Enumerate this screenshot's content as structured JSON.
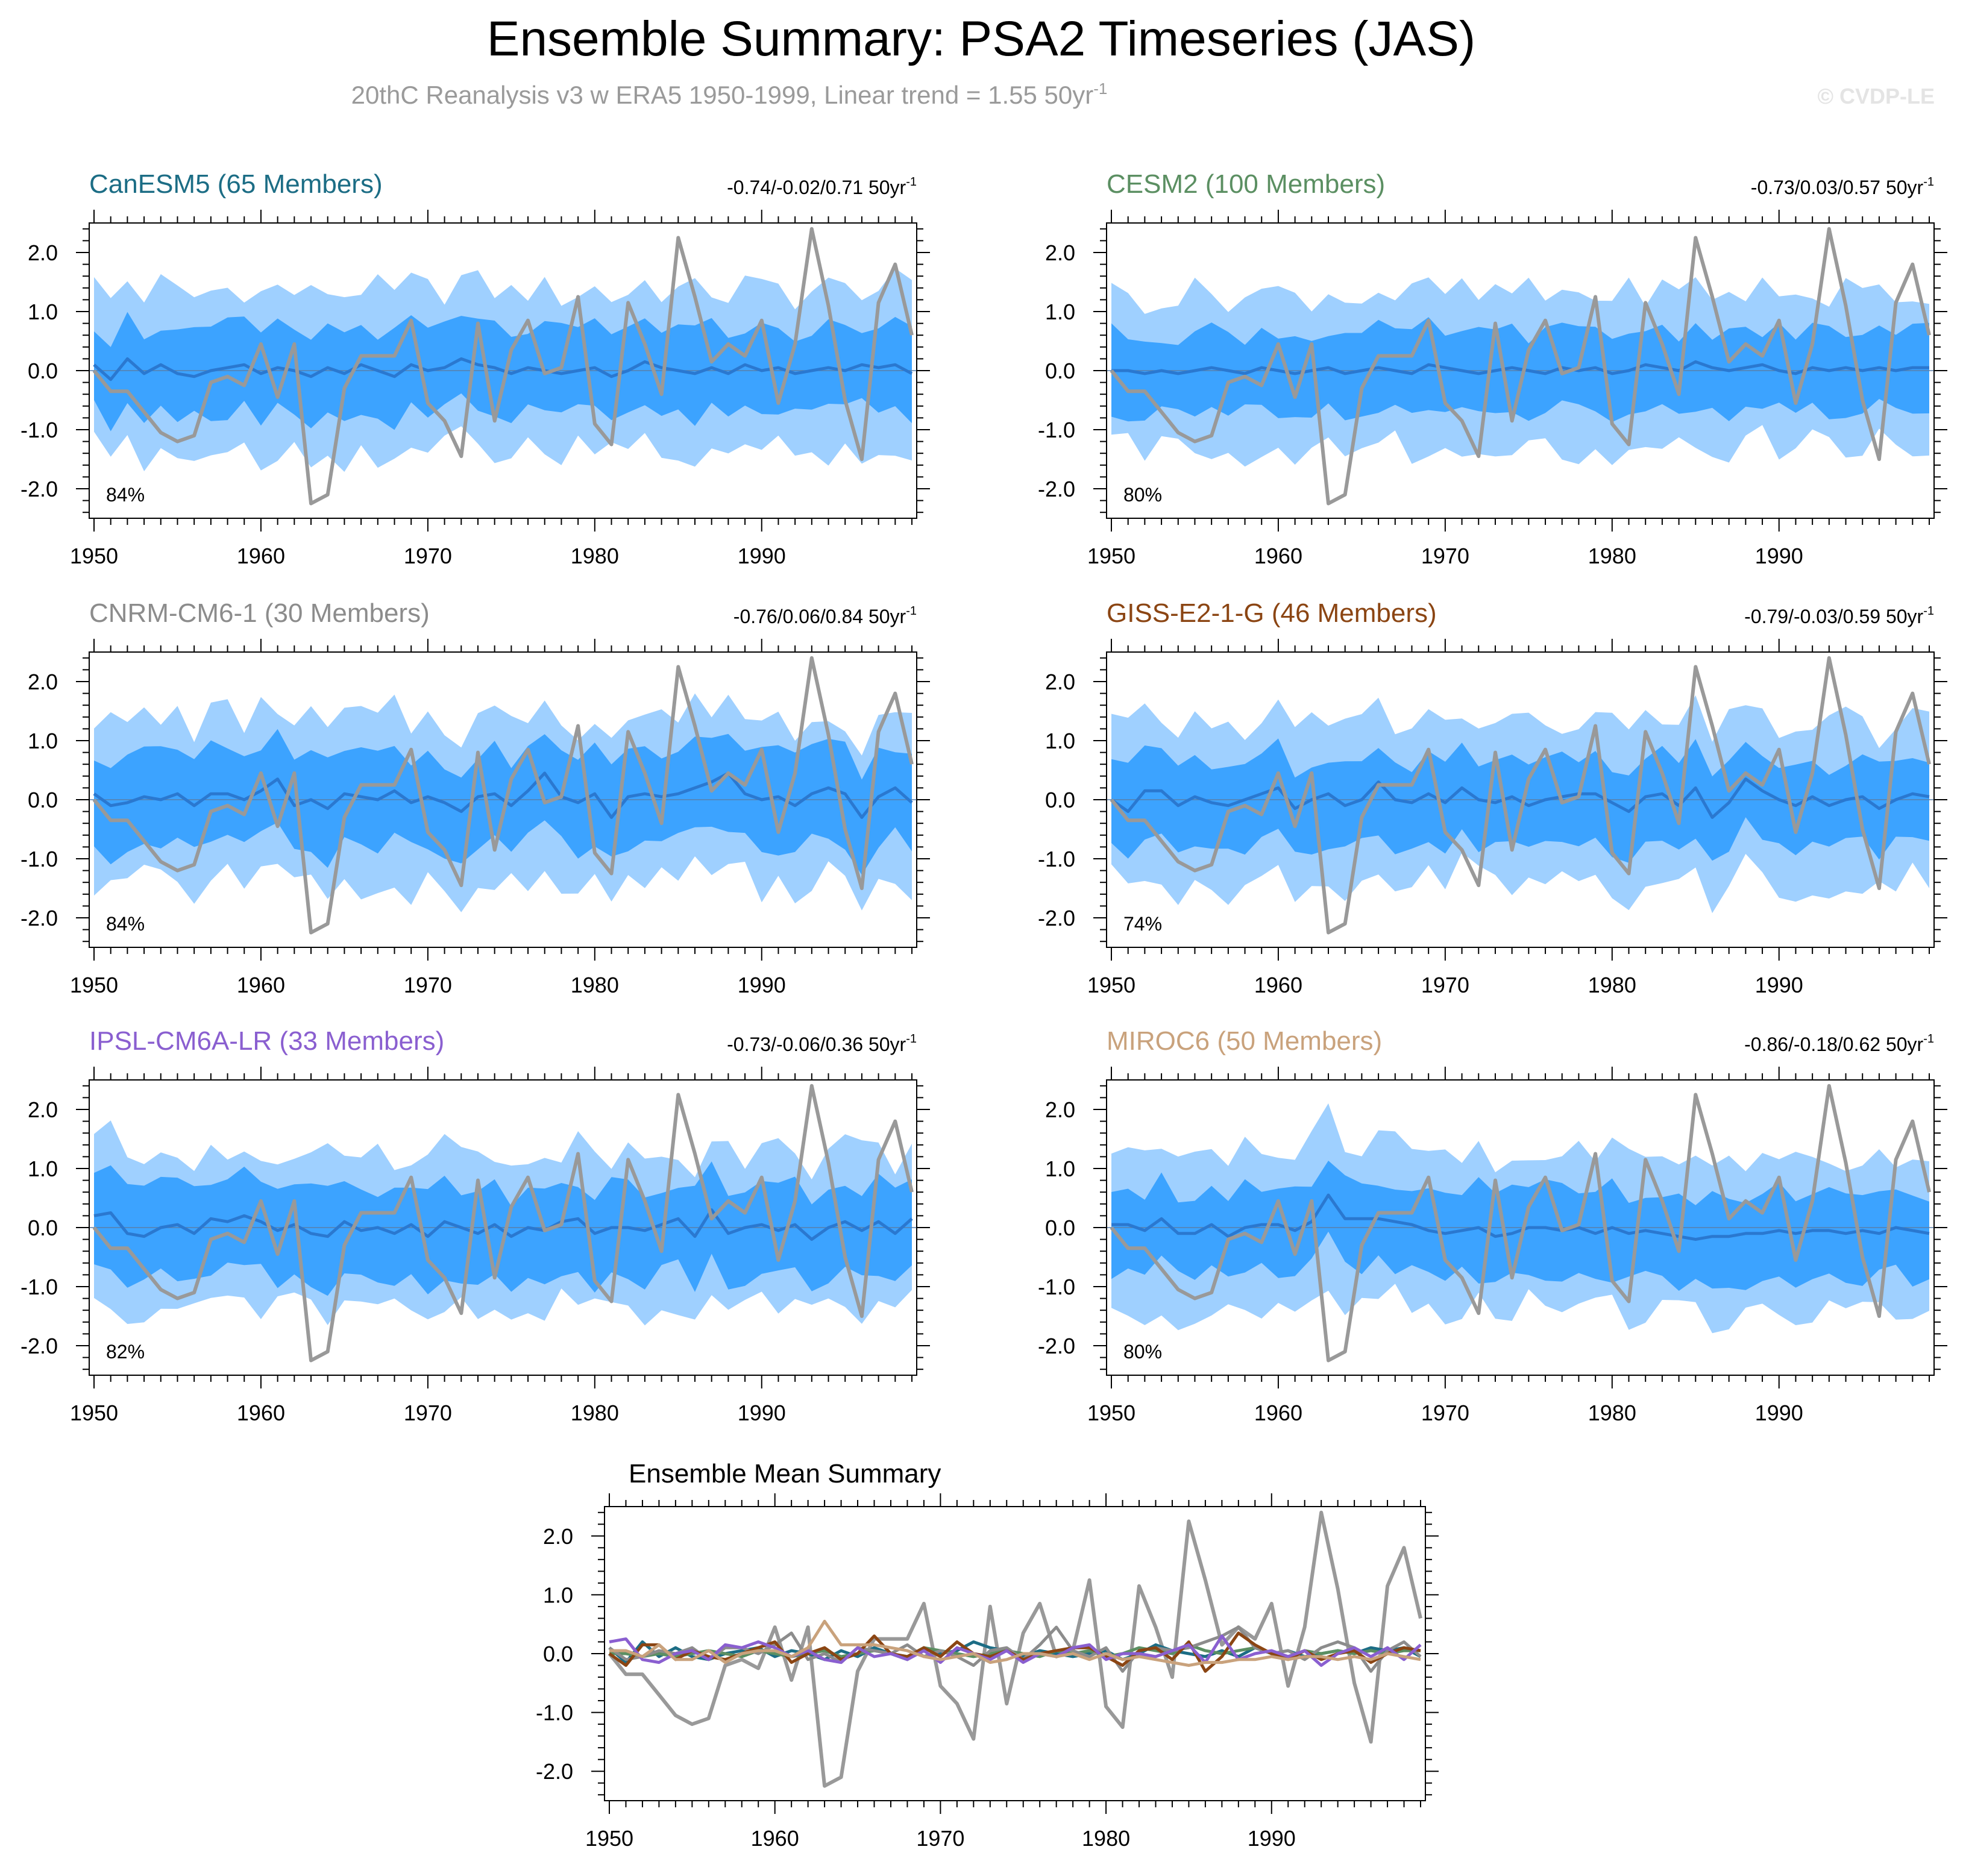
{
  "title": "Ensemble Summary: PSA2 Timeseries (JAS)",
  "subtitle_main": "20thC Reanalysis v3 w ERA5 1950-1999, Linear trend = 1.55 50yr",
  "subtitle_sup": "-1",
  "watermark": "© CVDP-LE",
  "observed": {
    "name": "20thC Reanalysis v3 w ERA5",
    "color": "#999999",
    "values": [
      0.0,
      -0.35,
      -0.35,
      -0.7,
      -1.05,
      -1.2,
      -1.1,
      -0.2,
      -0.1,
      -0.25,
      0.45,
      -0.45,
      0.45,
      -2.25,
      -2.1,
      -0.3,
      0.25,
      0.25,
      0.25,
      0.85,
      -0.55,
      -0.85,
      -1.45,
      0.8,
      -0.85,
      0.35,
      0.85,
      -0.05,
      0.05,
      1.25,
      -0.9,
      -1.25,
      1.15,
      0.45,
      -0.4,
      2.25,
      1.25,
      0.15,
      0.45,
      0.25,
      0.85,
      -0.55,
      0.45,
      2.4,
      1.1,
      -0.5,
      -1.5,
      1.15,
      1.8,
      0.6
    ]
  },
  "years": {
    "start": 1950,
    "end": 1999
  },
  "axes": {
    "yticks": [
      "2.0",
      "1.0",
      "0.0",
      "-1.0",
      "-2.0"
    ],
    "ytick_values": [
      2,
      1,
      0,
      -1,
      -2
    ],
    "xticks": [
      "1950",
      "1960",
      "1970",
      "1980",
      "1990"
    ],
    "xtick_values": [
      1950,
      1960,
      1970,
      1980,
      1990
    ],
    "ylim": [
      -2.5,
      2.5
    ]
  },
  "colors": {
    "outer_band": "#9fd0ff",
    "inner_band": "#3ca3ff",
    "mean_line": "#2a78d0"
  },
  "chart_data": [
    {
      "type": "line",
      "name": "CanESM5 (65 Members)",
      "color": "#1c6d85",
      "trend_text": "-0.74/-0.02/0.71 50yr",
      "trend_sup": "-1",
      "pct": "84%",
      "xlabel": "",
      "ylabel": "",
      "ylim": [
        -2.5,
        2.5
      ],
      "mean": [
        0.1,
        -0.15,
        0.2,
        -0.05,
        0.1,
        -0.05,
        -0.1,
        0.0,
        0.05,
        0.1,
        -0.05,
        0.05,
        0.0,
        -0.1,
        0.05,
        -0.05,
        0.1,
        0.0,
        -0.1,
        0.1,
        0.0,
        0.05,
        0.2,
        0.1,
        0.05,
        -0.05,
        0.05,
        0.0,
        -0.05,
        0.0,
        0.05,
        -0.1,
        0.0,
        0.15,
        0.05,
        0.0,
        -0.05,
        0.05,
        -0.05,
        0.1,
        0.0,
        0.05,
        -0.05,
        0.0,
        0.05,
        0.0,
        0.1,
        0.05,
        0.1,
        -0.05
      ],
      "outer_hi": 1.25,
      "outer_lo": -1.3,
      "inner_hi": 0.65,
      "inner_lo": -0.7
    },
    {
      "type": "line",
      "name": "CESM2 (100 Members)",
      "color": "#5b8f62",
      "trend_text": "-0.73/0.03/0.57 50yr",
      "trend_sup": "-1",
      "pct": "80%",
      "xlabel": "",
      "ylabel": "",
      "ylim": [
        -2.5,
        2.5
      ],
      "mean": [
        0.0,
        0.0,
        -0.05,
        0.0,
        -0.05,
        0.0,
        0.05,
        0.0,
        -0.05,
        0.05,
        0.0,
        -0.05,
        0.0,
        0.05,
        -0.05,
        0.0,
        0.05,
        0.0,
        -0.05,
        0.1,
        0.05,
        0.0,
        -0.05,
        0.0,
        0.05,
        0.0,
        -0.05,
        0.05,
        0.0,
        0.05,
        -0.05,
        0.0,
        0.1,
        0.05,
        0.0,
        0.15,
        0.05,
        0.0,
        0.05,
        0.1,
        0.0,
        -0.05,
        0.05,
        0.0,
        0.05,
        0.0,
        0.05,
        0.0,
        0.05,
        0.05
      ],
      "outer_hi": 1.2,
      "outer_lo": -1.2,
      "inner_hi": 0.6,
      "inner_lo": -0.65
    },
    {
      "type": "line",
      "name": "CNRM-CM6-1 (30 Members)",
      "color": "#8c8c8c",
      "trend_text": "-0.76/0.06/0.84 50yr",
      "trend_sup": "-1",
      "pct": "84%",
      "xlabel": "",
      "ylabel": "",
      "ylim": [
        -2.5,
        2.5
      ],
      "mean": [
        0.1,
        -0.1,
        -0.05,
        0.05,
        0.0,
        0.1,
        -0.1,
        0.1,
        0.1,
        0.0,
        0.15,
        0.35,
        -0.1,
        0.0,
        -0.15,
        0.1,
        0.05,
        0.0,
        0.15,
        -0.05,
        0.05,
        -0.05,
        -0.2,
        0.05,
        0.1,
        -0.1,
        0.15,
        0.45,
        0.05,
        -0.05,
        0.1,
        -0.3,
        0.05,
        0.1,
        0.05,
        0.1,
        0.2,
        0.3,
        0.45,
        0.1,
        0.0,
        0.05,
        -0.1,
        0.1,
        0.2,
        0.1,
        -0.3,
        0.05,
        0.2,
        -0.05
      ],
      "outer_hi": 1.25,
      "outer_lo": -1.35,
      "inner_hi": 0.7,
      "inner_lo": -0.8
    },
    {
      "type": "line",
      "name": "GISS-E2-1-G (46 Members)",
      "color": "#8b4513",
      "trend_text": "-0.79/-0.03/0.59 50yr",
      "trend_sup": "-1",
      "pct": "74%",
      "xlabel": "",
      "ylabel": "",
      "ylim": [
        -2.5,
        2.5
      ],
      "mean": [
        0.0,
        -0.2,
        0.15,
        0.15,
        -0.1,
        0.05,
        -0.05,
        -0.1,
        0.0,
        0.1,
        0.2,
        -0.15,
        0.0,
        0.1,
        -0.1,
        0.0,
        0.3,
        0.0,
        -0.05,
        0.1,
        -0.05,
        0.2,
        0.0,
        -0.05,
        0.05,
        -0.1,
        0.0,
        0.05,
        0.1,
        0.1,
        -0.05,
        -0.2,
        0.05,
        0.1,
        -0.1,
        0.2,
        -0.3,
        -0.05,
        0.35,
        0.15,
        0.0,
        -0.1,
        0.05,
        -0.1,
        0.0,
        0.05,
        -0.15,
        0.0,
        0.1,
        0.05
      ],
      "outer_hi": 1.2,
      "outer_lo": -1.3,
      "inner_hi": 0.65,
      "inner_lo": -0.75
    },
    {
      "type": "line",
      "name": "IPSL-CM6A-LR (33 Members)",
      "color": "#8a5fd0",
      "trend_text": "-0.73/-0.06/0.36 50yr",
      "trend_sup": "-1",
      "pct": "82%",
      "xlabel": "",
      "ylabel": "",
      "ylim": [
        -2.5,
        2.5
      ],
      "mean": [
        0.2,
        0.25,
        -0.1,
        -0.15,
        0.0,
        0.05,
        -0.1,
        0.15,
        0.1,
        0.2,
        0.1,
        -0.05,
        0.05,
        -0.1,
        -0.15,
        0.1,
        -0.05,
        0.0,
        -0.1,
        0.05,
        -0.15,
        0.1,
        0.0,
        -0.1,
        0.05,
        -0.15,
        0.0,
        -0.05,
        0.1,
        0.15,
        -0.1,
        0.0,
        0.0,
        -0.05,
        0.05,
        0.15,
        -0.15,
        0.3,
        -0.1,
        0.0,
        0.05,
        -0.05,
        0.05,
        -0.2,
        0.0,
        0.1,
        -0.05,
        0.1,
        -0.1,
        0.15
      ],
      "outer_hi": 1.2,
      "outer_lo": -1.3,
      "inner_hi": 0.65,
      "inner_lo": -0.8
    },
    {
      "type": "line",
      "name": "MIROC6 (50 Members)",
      "color": "#c9a27c",
      "trend_text": "-0.86/-0.18/0.62 50yr",
      "trend_sup": "-1",
      "pct": "80%",
      "xlabel": "",
      "ylabel": "",
      "ylim": [
        -2.5,
        2.5
      ],
      "mean": [
        0.05,
        0.05,
        -0.05,
        0.15,
        -0.1,
        -0.1,
        0.05,
        -0.15,
        0.0,
        0.05,
        0.05,
        -0.05,
        0.1,
        0.55,
        0.15,
        0.15,
        0.15,
        0.1,
        0.05,
        -0.05,
        -0.1,
        -0.05,
        0.0,
        -0.15,
        -0.1,
        0.0,
        0.0,
        -0.05,
        0.0,
        -0.1,
        0.0,
        -0.1,
        -0.05,
        -0.1,
        -0.15,
        -0.2,
        -0.15,
        -0.15,
        -0.1,
        -0.1,
        -0.05,
        -0.1,
        -0.05,
        -0.05,
        -0.1,
        -0.05,
        -0.1,
        0.0,
        -0.05,
        -0.1
      ],
      "outer_hi": 1.2,
      "outer_lo": -1.25,
      "inner_hi": 0.65,
      "inner_lo": -0.75
    },
    {
      "type": "line",
      "name": "Ensemble Mean Summary",
      "title": "Ensemble Mean Summary",
      "xlabel": "",
      "ylabel": "",
      "ylim": [
        -2.5,
        2.5
      ],
      "series": [
        "observed",
        "CanESM5 (65 Members)",
        "CESM2 (100 Members)",
        "CNRM-CM6-1 (30 Members)",
        "GISS-E2-1-G (46 Members)",
        "IPSL-CM6A-LR (33 Members)",
        "MIROC6 (50 Members)"
      ]
    }
  ]
}
